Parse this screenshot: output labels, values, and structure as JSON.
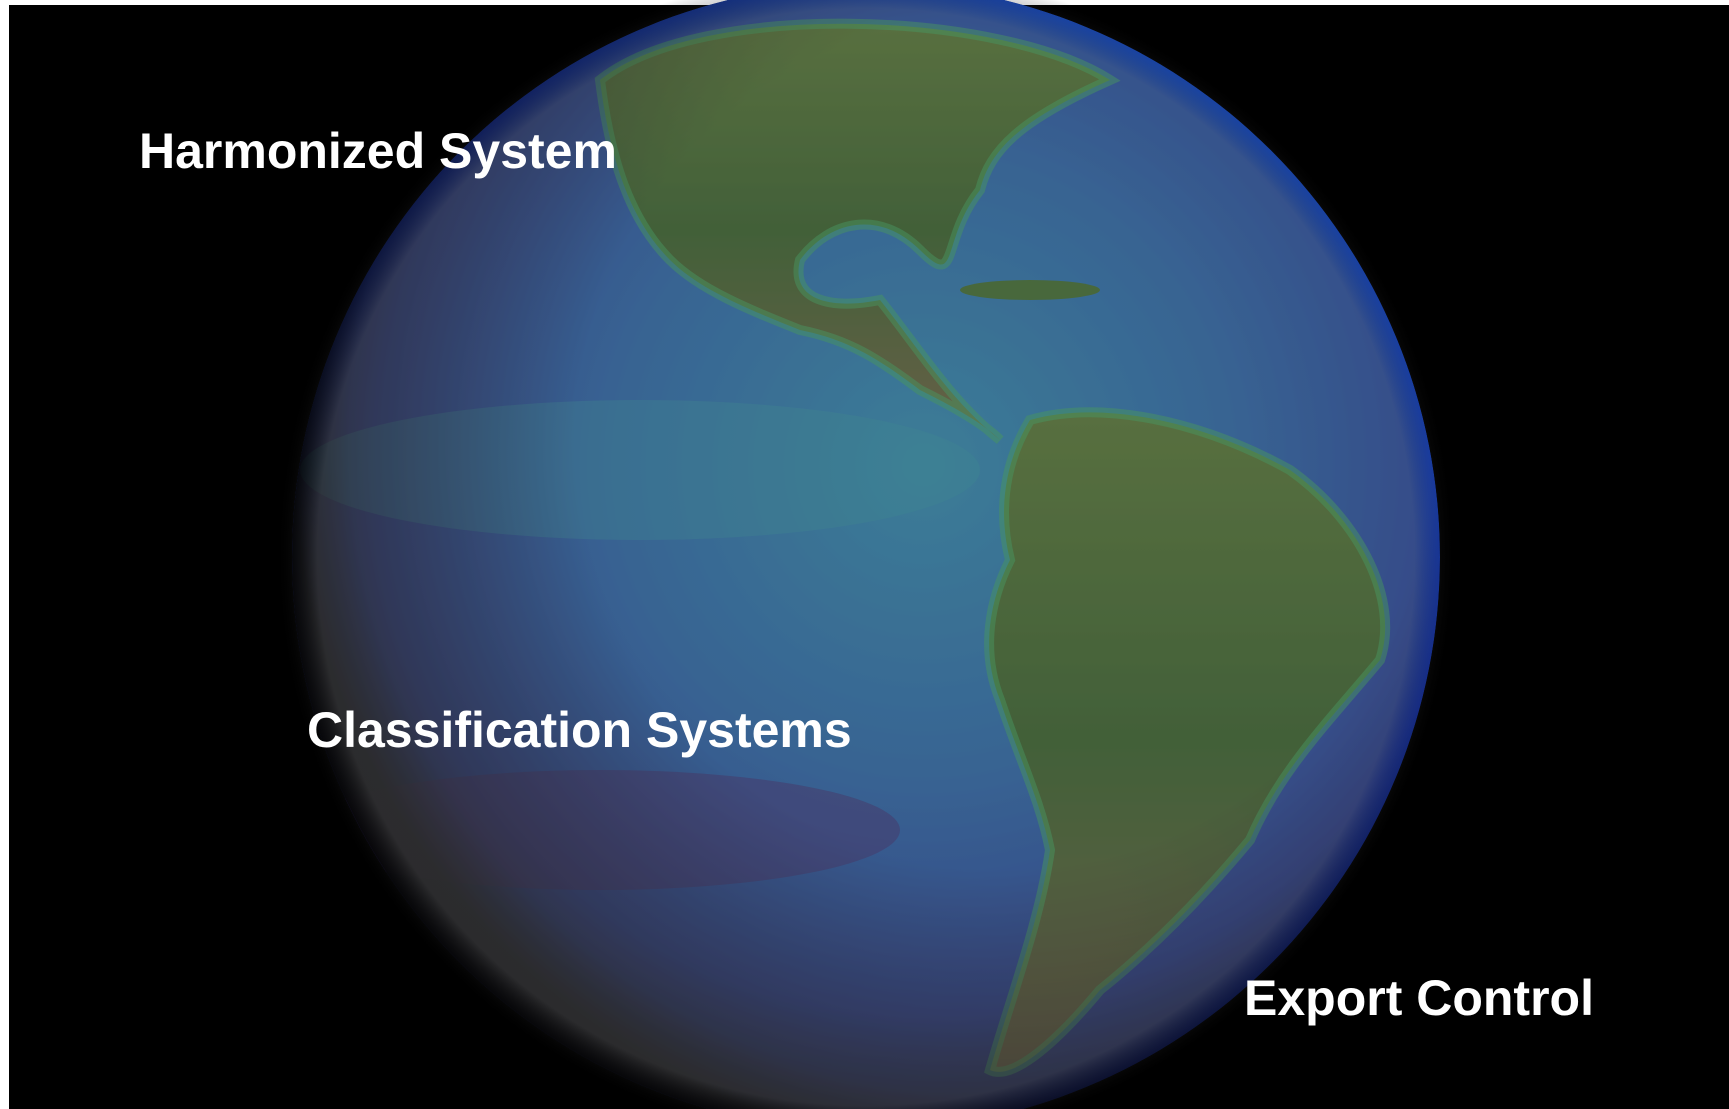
{
  "labels": {
    "top": "Harmonized System",
    "middle": "Classification Systems",
    "bottom": "Export Control"
  }
}
